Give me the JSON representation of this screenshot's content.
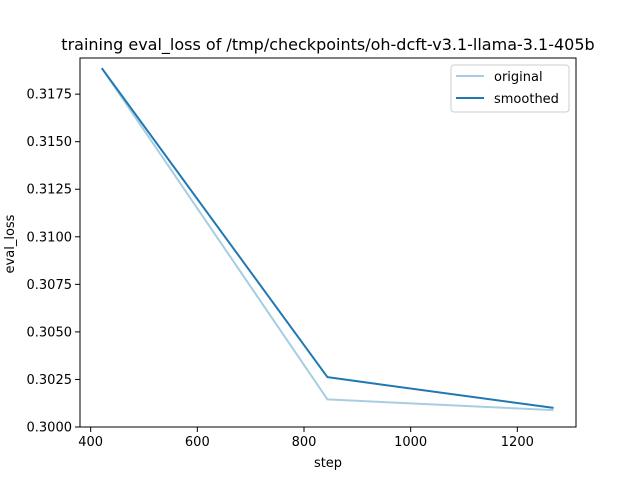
{
  "chart_data": {
    "type": "line",
    "title": "training eval_loss of /tmp/checkpoints/oh-dcft-v3.1-llama-3.1-405b",
    "xlabel": "step",
    "ylabel": "eval_loss",
    "xlim": [
      380,
      1310
    ],
    "ylim": [
      0.3,
      0.3194
    ],
    "x_ticks": [
      400,
      600,
      800,
      1000,
      1200
    ],
    "x_tick_labels": [
      "400",
      "600",
      "800",
      "1000",
      "1200"
    ],
    "y_ticks": [
      0.3,
      0.3025,
      0.305,
      0.3075,
      0.31,
      0.3125,
      0.315,
      0.3175
    ],
    "y_tick_labels": [
      "0.3000",
      "0.3025",
      "0.3050",
      "0.3075",
      "0.3100",
      "0.3125",
      "0.3150",
      "0.3175"
    ],
    "grid": false,
    "legend_position": "top-right",
    "series": [
      {
        "name": "original",
        "color": "#a6cee3",
        "x": [
          422,
          844,
          1266
        ],
        "y": [
          0.31882,
          0.30145,
          0.30089
        ]
      },
      {
        "name": "smoothed",
        "color": "#1f78b4",
        "x": [
          422,
          844,
          1266
        ],
        "y": [
          0.31882,
          0.30262,
          0.30101
        ]
      }
    ]
  }
}
